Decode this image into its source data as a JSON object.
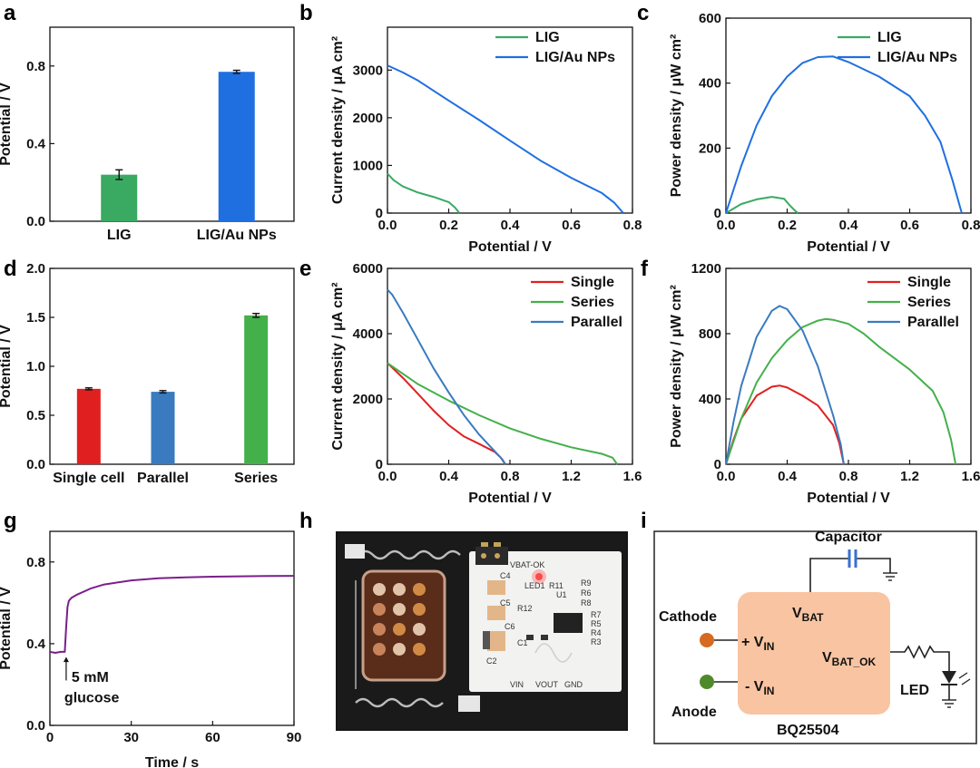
{
  "panel_letters": [
    "a",
    "b",
    "c",
    "d",
    "e",
    "f",
    "g",
    "h",
    "i"
  ],
  "chart_data": [
    {
      "id": "a",
      "type": "bar",
      "title": "",
      "xlabel": "",
      "ylabel": "Potential / V",
      "categories": [
        "LIG",
        "LIG/Au NPs"
      ],
      "values": [
        0.24,
        0.77
      ],
      "errors": [
        0.025,
        0.008
      ],
      "colors": [
        "#3aaa62",
        "#1f6fe0"
      ],
      "ylim": [
        0,
        1.0
      ],
      "yticks": [
        0.0,
        0.4,
        0.8
      ],
      "ytick_labels": [
        "0.0",
        "0.4",
        "0.8"
      ]
    },
    {
      "id": "b",
      "type": "line",
      "xlabel": "Potential / V",
      "ylabel": "Current density / μA cm²",
      "xlim": [
        0,
        0.8
      ],
      "ylim": [
        0,
        3900
      ],
      "xticks": [
        0,
        0.2,
        0.4,
        0.6,
        0.8
      ],
      "xtick_labels": [
        "0.0",
        "0.2",
        "0.4",
        "0.6",
        "0.8"
      ],
      "yticks": [
        0,
        1000,
        2000,
        3000
      ],
      "ytick_labels": [
        "0",
        "1000",
        "2000",
        "3000"
      ],
      "legend": "top-right",
      "series": [
        {
          "name": "LIG",
          "color": "#3aaa62",
          "x": [
            0,
            0.02,
            0.05,
            0.1,
            0.15,
            0.2,
            0.22,
            0.235
          ],
          "y": [
            830,
            690,
            560,
            430,
            340,
            230,
            120,
            0
          ]
        },
        {
          "name": "LIG/Au NPs",
          "color": "#1f6fe0",
          "x": [
            0,
            0.05,
            0.1,
            0.2,
            0.3,
            0.4,
            0.5,
            0.6,
            0.7,
            0.74,
            0.77
          ],
          "y": [
            3100,
            2950,
            2780,
            2360,
            1950,
            1520,
            1100,
            740,
            420,
            220,
            0
          ]
        }
      ]
    },
    {
      "id": "c",
      "type": "line",
      "xlabel": "Potential / V",
      "ylabel": "Power density / μW cm²",
      "xlim": [
        0,
        0.8
      ],
      "ylim": [
        0,
        600
      ],
      "xticks": [
        0,
        0.2,
        0.4,
        0.6,
        0.8
      ],
      "xtick_labels": [
        "0.0",
        "0.2",
        "0.4",
        "0.6",
        "0.8"
      ],
      "yticks": [
        0,
        200,
        400,
        600
      ],
      "ytick_labels": [
        "0",
        "200",
        "400",
        "600"
      ],
      "legend": "top-right",
      "series": [
        {
          "name": "LIG",
          "color": "#3aaa62",
          "x": [
            0,
            0.05,
            0.1,
            0.15,
            0.19,
            0.21,
            0.225,
            0.235
          ],
          "y": [
            0,
            28,
            42,
            50,
            44,
            22,
            8,
            0
          ]
        },
        {
          "name": "LIG/Au NPs",
          "color": "#1f6fe0",
          "x": [
            0,
            0.05,
            0.1,
            0.15,
            0.2,
            0.25,
            0.3,
            0.35,
            0.4,
            0.5,
            0.6,
            0.65,
            0.7,
            0.74,
            0.77
          ],
          "y": [
            0,
            145,
            270,
            360,
            420,
            462,
            480,
            482,
            465,
            420,
            360,
            300,
            220,
            100,
            0
          ]
        }
      ]
    },
    {
      "id": "d",
      "type": "bar",
      "xlabel": "",
      "ylabel": "Potential / V",
      "categories": [
        "Single cell",
        "Parallel",
        "Series"
      ],
      "values": [
        0.77,
        0.74,
        1.52
      ],
      "errors": [
        0.01,
        0.012,
        0.02
      ],
      "colors": [
        "#e02020",
        "#3a7bbf",
        "#44b04a"
      ],
      "ylim": [
        0,
        2.0
      ],
      "yticks": [
        0,
        0.5,
        1.0,
        1.5,
        2.0
      ],
      "ytick_labels": [
        "0.0",
        "0.5",
        "1.0",
        "1.5",
        "2.0"
      ]
    },
    {
      "id": "e",
      "type": "line",
      "xlabel": "Potential / V",
      "ylabel": "Current density / μA cm²",
      "xlim": [
        0,
        1.6
      ],
      "ylim": [
        0,
        6000
      ],
      "xticks": [
        0,
        0.4,
        0.8,
        1.2,
        1.6
      ],
      "xtick_labels": [
        "0.0",
        "0.4",
        "0.8",
        "1.2",
        "1.6"
      ],
      "yticks": [
        0,
        2000,
        4000,
        6000
      ],
      "ytick_labels": [
        "0",
        "2000",
        "4000",
        "6000"
      ],
      "legend": "top-right",
      "series": [
        {
          "name": "Single",
          "color": "#e02020",
          "x": [
            0,
            0.1,
            0.2,
            0.3,
            0.4,
            0.5,
            0.6,
            0.7,
            0.74,
            0.77
          ],
          "y": [
            3100,
            2650,
            2150,
            1650,
            1200,
            850,
            620,
            380,
            200,
            0
          ]
        },
        {
          "name": "Series",
          "color": "#44b04a",
          "x": [
            0,
            0.2,
            0.4,
            0.6,
            0.8,
            1.0,
            1.2,
            1.4,
            1.47,
            1.5
          ],
          "y": [
            3100,
            2450,
            1950,
            1500,
            1100,
            780,
            520,
            320,
            200,
            0
          ]
        },
        {
          "name": "Parallel",
          "color": "#3a7bbf",
          "x": [
            0,
            0.03,
            0.1,
            0.2,
            0.3,
            0.4,
            0.5,
            0.6,
            0.7,
            0.75,
            0.77
          ],
          "y": [
            5350,
            5200,
            4650,
            3800,
            2950,
            2200,
            1500,
            900,
            400,
            150,
            0
          ]
        }
      ]
    },
    {
      "id": "f",
      "type": "line",
      "xlabel": "Potential / V",
      "ylabel": "Power density / μW cm²",
      "xlim": [
        0,
        1.6
      ],
      "ylim": [
        0,
        1200
      ],
      "xticks": [
        0,
        0.4,
        0.8,
        1.2,
        1.6
      ],
      "xtick_labels": [
        "0.0",
        "0.4",
        "0.8",
        "1.2",
        "1.6"
      ],
      "yticks": [
        0,
        400,
        800,
        1200
      ],
      "ytick_labels": [
        "0",
        "400",
        "800",
        "1200"
      ],
      "legend": "top-right",
      "series": [
        {
          "name": "Single",
          "color": "#e02020",
          "x": [
            0,
            0.05,
            0.1,
            0.2,
            0.3,
            0.35,
            0.4,
            0.5,
            0.6,
            0.7,
            0.74,
            0.77
          ],
          "y": [
            0,
            150,
            280,
            420,
            475,
            482,
            470,
            420,
            360,
            240,
            130,
            0
          ]
        },
        {
          "name": "Series",
          "color": "#44b04a",
          "x": [
            0,
            0.1,
            0.2,
            0.3,
            0.4,
            0.5,
            0.6,
            0.65,
            0.7,
            0.8,
            0.9,
            1.0,
            1.2,
            1.35,
            1.42,
            1.47,
            1.5
          ],
          "y": [
            0,
            280,
            500,
            650,
            760,
            840,
            880,
            890,
            885,
            860,
            800,
            720,
            580,
            450,
            320,
            150,
            0
          ]
        },
        {
          "name": "Parallel",
          "color": "#3a7bbf",
          "x": [
            0,
            0.05,
            0.1,
            0.2,
            0.3,
            0.35,
            0.4,
            0.5,
            0.6,
            0.7,
            0.75,
            0.77
          ],
          "y": [
            0,
            260,
            480,
            780,
            940,
            970,
            950,
            820,
            600,
            300,
            120,
            0
          ]
        }
      ]
    },
    {
      "id": "g",
      "type": "line",
      "xlabel": "Time / s",
      "ylabel": "Potential / V",
      "xlim": [
        0,
        90
      ],
      "ylim": [
        0,
        0.95
      ],
      "xticks": [
        0,
        30,
        60,
        90
      ],
      "xtick_labels": [
        "0",
        "30",
        "60",
        "90"
      ],
      "yticks": [
        0,
        0.4,
        0.8
      ],
      "ytick_labels": [
        "0.0",
        "0.4",
        "0.8"
      ],
      "annotation": {
        "line1": "5 mM",
        "line2": "glucose",
        "x": 6
      },
      "series": [
        {
          "name": "Potential",
          "color": "#7a1e8c",
          "x": [
            0,
            2,
            4,
            5.5,
            6,
            6.5,
            7,
            8,
            10,
            15,
            20,
            30,
            40,
            50,
            60,
            70,
            80,
            90
          ],
          "y": [
            0.36,
            0.355,
            0.36,
            0.36,
            0.48,
            0.58,
            0.61,
            0.625,
            0.64,
            0.67,
            0.69,
            0.71,
            0.72,
            0.725,
            0.728,
            0.73,
            0.731,
            0.732
          ]
        }
      ]
    }
  ],
  "photo": {
    "pcb_labels": [
      "VBAT-OK",
      "C4",
      "LED1",
      "R11",
      "U1",
      "R9",
      "R6",
      "R8",
      "C5",
      "R12",
      "R7",
      "R5",
      "R4",
      "R3",
      "C6",
      "C1",
      "C2",
      "VIN",
      "VOUT",
      "GND"
    ]
  },
  "circuit": {
    "capacitor": "Capacitor",
    "cathode": "Cathode",
    "anode": "Anode",
    "plus_vin_prefix": "+ V",
    "minus_vin_prefix": "- V",
    "vin_sub": "IN",
    "vbat": "V",
    "vbat_sub": "BAT",
    "vbat_ok": "V",
    "vbat_ok_sub": "BAT_OK",
    "led": "LED",
    "chip": "BQ25504"
  }
}
